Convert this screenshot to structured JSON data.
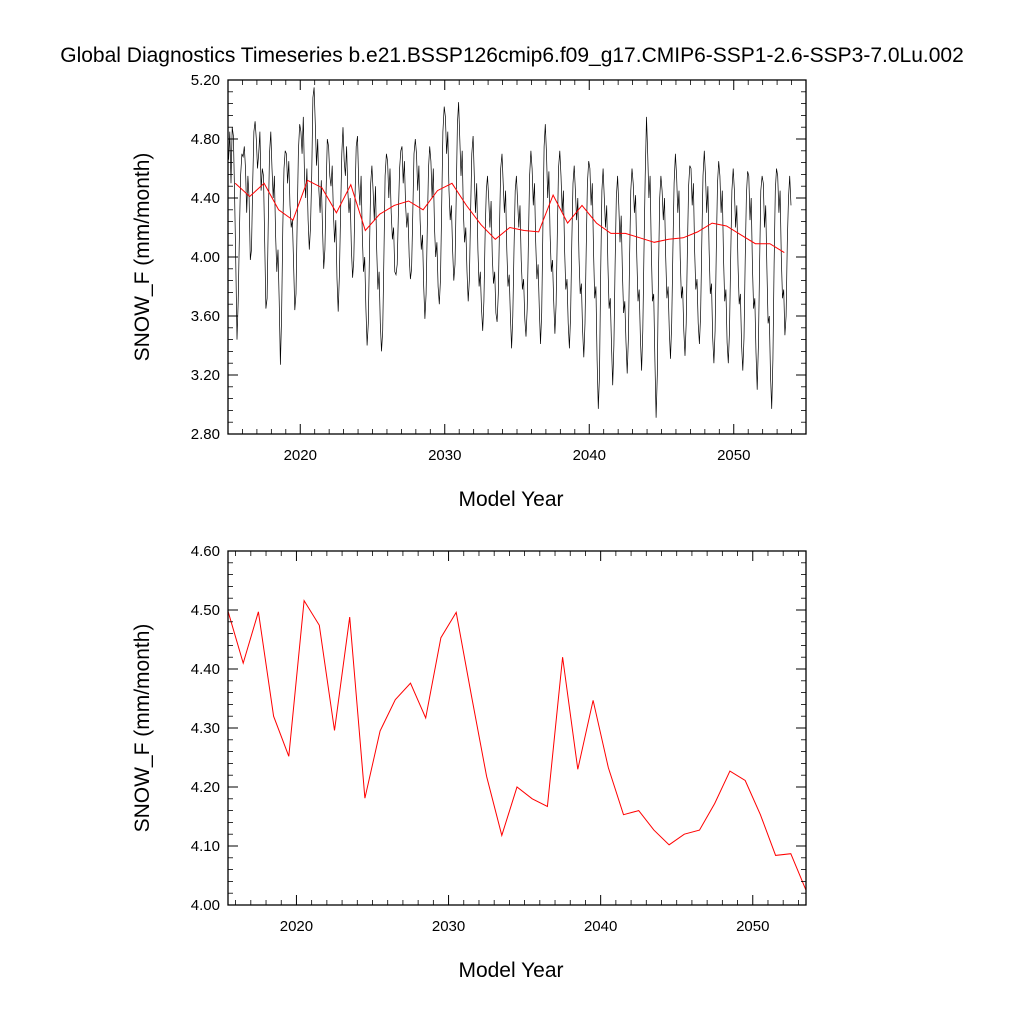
{
  "title": "Global Diagnostics Timeseries b.e21.BSSP126cmip6.f09_g17.CMIP6-SSP1-2.6-SSP3-7.0Lu.002",
  "colors": {
    "monthly": "#000000",
    "annual": "#ff0000",
    "axis": "#000000"
  },
  "chart_data": [
    {
      "type": "line",
      "xlabel": "Model Year",
      "ylabel": "SNOW_F (mm/month)",
      "xlim": [
        2015,
        2055
      ],
      "ylim": [
        2.8,
        5.2
      ],
      "xticks": [
        2020,
        2030,
        2040,
        2050
      ],
      "yticks": [
        "2.80",
        "3.20",
        "3.60",
        "4.00",
        "4.40",
        "4.80",
        "5.20"
      ],
      "series": [
        {
          "style": "monthly-black",
          "x_start": 2015.042,
          "x_step": 0.0833333,
          "values": [
            4.66,
            4.85,
            4.5,
            4.88,
            4.82,
            4.42,
            3.95,
            3.44,
            3.7,
            4.15,
            4.55,
            4.7,
            4.68,
            4.75,
            4.6,
            4.3,
            4.55,
            4.4,
            3.98,
            4.05,
            4.5,
            4.85,
            4.92,
            4.8,
            4.6,
            4.7,
            4.85,
            4.45,
            4.6,
            4.55,
            4.1,
            3.65,
            3.72,
            4.25,
            4.7,
            4.85,
            4.6,
            4.4,
            4.55,
            4.15,
            3.9,
            4.05,
            3.7,
            3.27,
            3.6,
            4.2,
            4.6,
            4.72,
            4.7,
            4.5,
            4.65,
            4.35,
            4.2,
            4.25,
            3.95,
            3.64,
            3.75,
            4.25,
            4.72,
            4.9,
            4.85,
            4.7,
            4.95,
            4.55,
            4.4,
            4.6,
            4.25,
            4.05,
            4.2,
            4.55,
            5.08,
            5.15,
            4.9,
            4.62,
            4.8,
            4.45,
            4.3,
            4.52,
            4.2,
            3.92,
            4.05,
            4.45,
            4.8,
            4.75,
            4.55,
            4.48,
            4.62,
            4.3,
            4.1,
            4.25,
            3.85,
            3.63,
            3.88,
            4.3,
            4.7,
            4.88,
            4.65,
            4.55,
            4.75,
            4.45,
            4.3,
            4.4,
            4.05,
            3.86,
            3.98,
            4.4,
            4.75,
            4.82,
            4.5,
            4.35,
            4.55,
            4.15,
            3.9,
            4.0,
            3.65,
            3.4,
            3.55,
            4.05,
            4.5,
            4.62,
            4.45,
            4.25,
            4.48,
            4.05,
            3.78,
            3.9,
            3.55,
            3.36,
            3.5,
            4.0,
            4.55,
            4.7,
            4.65,
            4.4,
            4.6,
            4.3,
            4.12,
            4.2,
            3.9,
            3.88,
            3.95,
            4.3,
            4.6,
            4.72,
            4.75,
            4.5,
            4.65,
            4.35,
            4.2,
            4.3,
            4.0,
            3.85,
            3.92,
            4.3,
            4.7,
            4.8,
            4.7,
            4.45,
            4.62,
            4.25,
            4.05,
            4.15,
            3.8,
            3.58,
            3.75,
            4.2,
            4.6,
            4.75,
            4.65,
            4.4,
            4.6,
            4.2,
            4.0,
            4.1,
            3.8,
            3.68,
            3.85,
            4.35,
            4.85,
            5.02,
            4.95,
            4.7,
            4.85,
            4.45,
            4.25,
            4.35,
            4.05,
            3.84,
            3.95,
            4.4,
            4.9,
            5.05,
            4.8,
            4.55,
            4.72,
            4.3,
            4.1,
            4.2,
            3.9,
            3.7,
            3.85,
            4.3,
            4.7,
            4.82,
            4.55,
            4.3,
            4.5,
            4.05,
            3.8,
            3.9,
            3.65,
            3.5,
            3.7,
            4.15,
            4.45,
            4.55,
            4.4,
            4.2,
            4.38,
            4.0,
            3.82,
            3.9,
            3.62,
            3.56,
            3.75,
            4.2,
            4.6,
            4.7,
            4.5,
            4.3,
            4.45,
            4.05,
            3.8,
            3.88,
            3.6,
            3.38,
            3.6,
            4.05,
            4.45,
            4.55,
            4.38,
            4.2,
            4.35,
            3.98,
            3.78,
            3.85,
            3.58,
            3.46,
            3.65,
            4.1,
            4.55,
            4.72,
            4.6,
            4.35,
            4.5,
            4.1,
            3.85,
            3.95,
            3.65,
            3.41,
            3.62,
            4.2,
            4.75,
            4.9,
            4.7,
            4.4,
            4.58,
            4.15,
            3.9,
            3.98,
            3.7,
            3.48,
            3.68,
            4.15,
            4.6,
            4.72,
            4.55,
            4.3,
            4.45,
            4.05,
            3.78,
            3.85,
            3.55,
            3.38,
            3.6,
            4.1,
            4.5,
            4.62,
            4.45,
            4.25,
            4.4,
            4.0,
            3.75,
            3.82,
            3.5,
            3.32,
            3.55,
            4.05,
            4.5,
            4.65,
            4.6,
            4.35,
            4.5,
            4.05,
            3.72,
            3.8,
            3.3,
            2.97,
            3.2,
            3.9,
            4.45,
            4.6,
            4.4,
            4.2,
            4.35,
            3.95,
            3.65,
            3.72,
            3.4,
            3.13,
            3.4,
            3.95,
            4.4,
            4.55,
            4.35,
            4.1,
            4.28,
            3.9,
            3.62,
            3.7,
            3.42,
            3.21,
            3.45,
            4.0,
            4.45,
            4.6,
            4.5,
            4.3,
            4.42,
            4.0,
            3.7,
            3.78,
            3.45,
            3.23,
            3.5,
            4.05,
            4.55,
            4.95,
            4.7,
            4.4,
            4.55,
            4.05,
            3.7,
            3.75,
            3.3,
            2.91,
            3.2,
            3.9,
            4.4,
            4.55,
            4.45,
            4.25,
            4.4,
            4.0,
            3.72,
            3.8,
            3.5,
            3.31,
            3.55,
            4.05,
            4.5,
            4.7,
            4.55,
            4.3,
            4.45,
            4.0,
            3.72,
            3.8,
            3.5,
            3.33,
            3.55,
            4.05,
            4.48,
            4.62,
            4.6,
            4.35,
            4.5,
            4.05,
            3.78,
            3.85,
            3.55,
            3.41,
            3.6,
            4.1,
            4.55,
            4.72,
            4.55,
            4.3,
            4.48,
            4.05,
            3.75,
            3.82,
            3.45,
            3.28,
            3.5,
            4.05,
            4.5,
            4.65,
            4.55,
            4.3,
            4.45,
            4.0,
            3.7,
            3.78,
            3.42,
            3.28,
            3.5,
            4.0,
            4.45,
            4.6,
            4.45,
            4.2,
            4.35,
            3.95,
            3.68,
            3.75,
            3.4,
            3.23,
            3.45,
            3.98,
            4.42,
            4.58,
            4.55,
            4.25,
            4.4,
            3.95,
            3.65,
            3.72,
            3.35,
            3.1,
            3.4,
            3.95,
            4.45,
            4.55,
            4.5,
            4.2,
            4.35,
            3.92,
            3.55,
            3.6,
            3.2,
            2.97,
            3.3,
            3.95,
            4.45,
            4.6,
            4.55,
            4.3,
            4.45,
            4.0,
            3.72,
            3.78,
            3.47,
            3.6,
            4.1,
            4.4,
            4.55,
            4.35
          ]
        },
        {
          "style": "annual-red",
          "x": [
            2015.5,
            2016.5,
            2017.5,
            2018.5,
            2019.5,
            2020.5,
            2021.5,
            2022.5,
            2023.5,
            2024.5,
            2025.5,
            2026.5,
            2027.5,
            2028.5,
            2029.5,
            2030.5,
            2031.5,
            2032.5,
            2033.5,
            2034.5,
            2035.5,
            2036.5,
            2037.5,
            2038.5,
            2039.5,
            2040.5,
            2041.5,
            2042.5,
            2043.5,
            2044.5,
            2045.5,
            2046.5,
            2047.5,
            2048.5,
            2049.5,
            2050.5,
            2051.5,
            2052.5,
            2053.5
          ],
          "values": [
            4.5,
            4.41,
            4.5,
            4.32,
            4.25,
            4.52,
            4.47,
            4.3,
            4.49,
            4.18,
            4.29,
            4.35,
            4.38,
            4.32,
            4.45,
            4.5,
            4.35,
            4.22,
            4.12,
            4.2,
            4.18,
            4.17,
            4.42,
            4.23,
            4.35,
            4.23,
            4.16,
            4.16,
            4.13,
            4.1,
            4.12,
            4.13,
            4.17,
            4.23,
            4.21,
            4.15,
            4.09,
            4.09,
            4.03
          ]
        }
      ]
    },
    {
      "type": "line",
      "xlabel": "Model Year",
      "ylabel": "SNOW_F (mm/month)",
      "xlim": [
        2015.5,
        2053.5
      ],
      "ylim": [
        4.0,
        4.6
      ],
      "xticks": [
        2020,
        2030,
        2040,
        2050
      ],
      "yticks": [
        "4.00",
        "4.10",
        "4.20",
        "4.30",
        "4.40",
        "4.50",
        "4.60"
      ],
      "series": [
        {
          "style": "annual-red",
          "x": [
            2015.5,
            2016.5,
            2017.5,
            2018.5,
            2019.5,
            2020.5,
            2021.5,
            2022.5,
            2023.5,
            2024.5,
            2025.5,
            2026.5,
            2027.5,
            2028.5,
            2029.5,
            2030.5,
            2031.5,
            2032.5,
            2033.5,
            2034.5,
            2035.5,
            2036.5,
            2037.5,
            2038.5,
            2039.5,
            2040.5,
            2041.5,
            2042.5,
            2043.5,
            2044.5,
            2045.5,
            2046.5,
            2047.5,
            2048.5,
            2049.5,
            2050.5,
            2051.5,
            2052.5,
            2053.5
          ],
          "values": [
            4.498,
            4.41,
            4.497,
            4.32,
            4.252,
            4.516,
            4.474,
            4.296,
            4.488,
            4.181,
            4.295,
            4.348,
            4.376,
            4.317,
            4.453,
            4.496,
            4.355,
            4.218,
            4.118,
            4.2,
            4.18,
            4.167,
            4.42,
            4.23,
            4.347,
            4.233,
            4.153,
            4.16,
            4.127,
            4.102,
            4.12,
            4.127,
            4.172,
            4.227,
            4.211,
            4.153,
            4.084,
            4.087,
            4.025
          ]
        }
      ]
    }
  ]
}
